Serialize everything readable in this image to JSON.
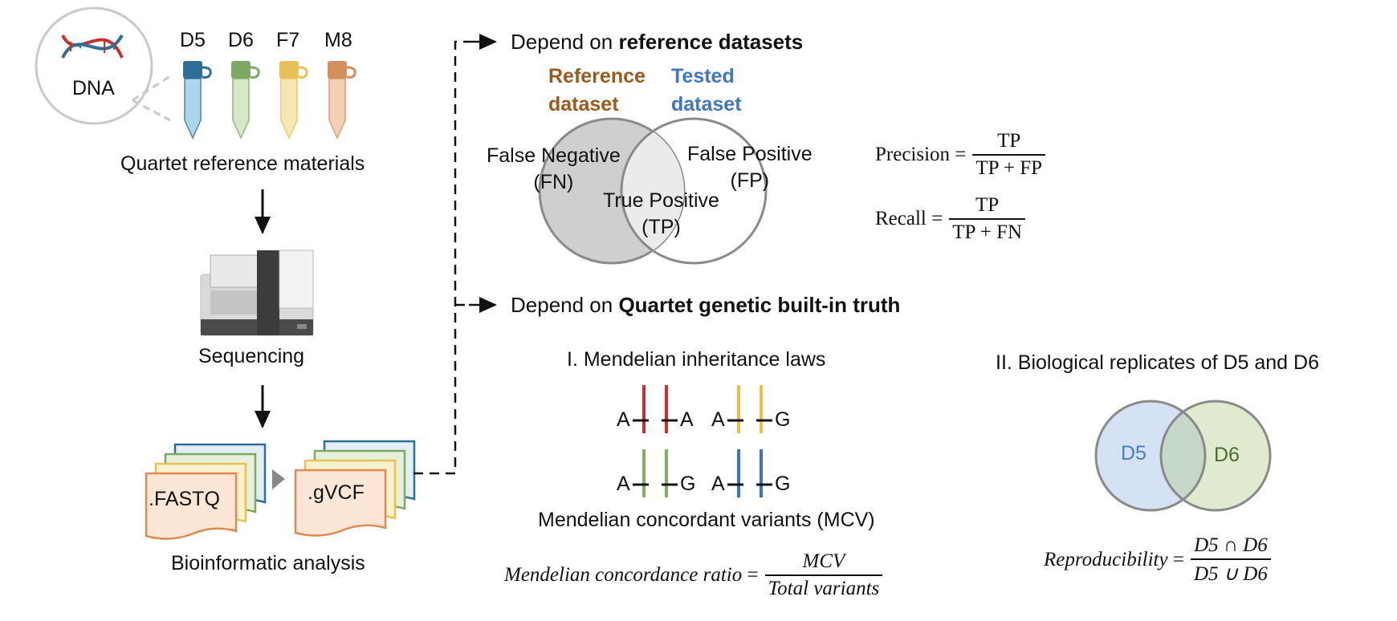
{
  "left": {
    "dna_label": "DNA",
    "tubes": [
      {
        "label": "D5",
        "cap": "#2f6e96",
        "body": "#9fd0ea"
      },
      {
        "label": "D6",
        "cap": "#7ea965",
        "body": "#cfe5bd"
      },
      {
        "label": "F7",
        "cap": "#e6c155",
        "body": "#f6e4a6"
      },
      {
        "label": "M8",
        "cap": "#d58f5e",
        "body": "#f2c7aa"
      }
    ],
    "materials_label": "Quartet reference materials",
    "sequencing_label": "Sequencing",
    "fastq_label": ".FASTQ",
    "gvcf_label": ".gVCF",
    "bioinfo_label": "Bioinformatic analysis"
  },
  "top": {
    "heading_prefix": "Depend on ",
    "heading_bold": "reference datasets",
    "reference_title": "Reference\ndataset",
    "tested_title": "Tested\ndataset",
    "reference_color": "#9a5a1e",
    "tested_color": "#3f78c0",
    "fn_label": "False Negative\n(FN)",
    "fp_label": "False Positive\n(FP)",
    "tp_label": "True Positive\n(TP)",
    "precision": {
      "name": "Precision",
      "eq": "=",
      "num": "TP",
      "den": "TP + FP"
    },
    "recall": {
      "name": "Recall",
      "eq": "=",
      "num": "TP",
      "den": "TP + FN"
    }
  },
  "bottom": {
    "heading_prefix": "Depend on ",
    "heading_bold": "Quartet genetic built-in truth",
    "mendel_title": "I. Mendelian inheritance laws",
    "allele_pairs": [
      {
        "left": "A",
        "right": "A",
        "color": "#c8302c"
      },
      {
        "left": "A",
        "right": "G",
        "color": "#efbd3f"
      },
      {
        "left": "A",
        "right": "G",
        "color": "#7fb25a"
      },
      {
        "left": "A",
        "right": "G",
        "color": "#3f6fc2"
      }
    ],
    "mcv_label": "Mendelian concordant variants (MCV)",
    "mcr": {
      "name": "Mendelian concordance ratio",
      "eq": "=",
      "num": "MCV",
      "den": "Total variants"
    },
    "replicates_title": "II. Biological replicates of D5 and D6",
    "d5_label": "D5",
    "d6_label": "D6",
    "d5_color": "#4a7ec4",
    "d6_color": "#4d6b2e",
    "repro": {
      "name": "Reproducibility",
      "eq": "=",
      "num": "D5 ∩ D6",
      "den": "D5 ∪ D6"
    }
  }
}
